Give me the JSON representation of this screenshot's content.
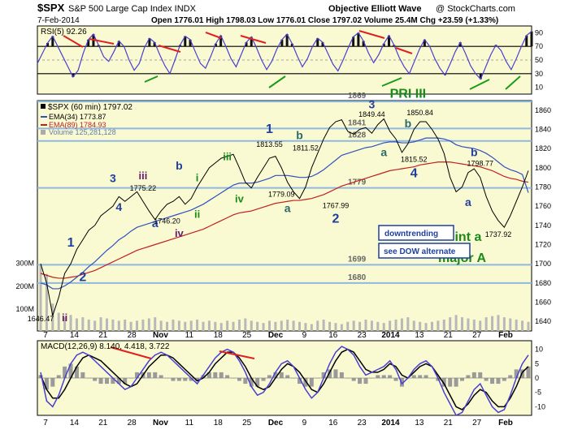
{
  "header": {
    "ticker": "$SPX",
    "name": "S&P 500 Large Cap Index INDX",
    "date": "7-Feb-2014",
    "source": "Objective Elliott Wave",
    "credit": "@ StockCharts.com",
    "ohlc": "Open 1776.01  High 1798.03  Low 1776.01  Close 1797.02  Volume 25.4M  Chg +23.59 (+1.33%)"
  },
  "colors": {
    "panel_bg": "#fafad2",
    "rsi": "#4a3fd0",
    "price": "#000000",
    "ema34": "#3050c0",
    "ema89": "#c02020",
    "hline": "#8fb8e0",
    "label": "#1f3f9f",
    "green": "#1a8a1a",
    "purple": "#6a1a6a",
    "teal": "#2a6a6a",
    "trend": "#e02020"
  },
  "rsi_panel": {
    "label": "RSI(5) 92.26",
    "ticks": [
      "90",
      "70",
      "50",
      "30",
      "10"
    ],
    "ylim": [
      0,
      100
    ],
    "series": [
      45,
      60,
      75,
      85,
      70,
      55,
      40,
      25,
      35,
      60,
      80,
      88,
      72,
      55,
      48,
      62,
      78,
      70,
      50,
      35,
      45,
      68,
      82,
      76,
      58,
      42,
      30,
      50,
      72,
      85,
      80,
      62,
      45,
      38,
      55,
      74,
      86,
      70,
      52,
      40,
      58,
      76,
      84,
      68,
      50,
      36,
      48,
      66,
      80,
      88,
      74,
      56,
      40,
      52,
      70,
      82,
      76,
      60,
      44,
      34,
      50,
      68,
      84,
      90,
      78,
      60,
      46,
      58,
      74,
      86,
      72,
      54,
      40,
      30,
      48,
      66,
      80,
      70,
      52,
      38,
      28,
      44,
      62,
      76,
      60,
      42,
      30,
      22,
      40,
      58,
      72,
      64,
      48,
      36,
      52,
      70,
      86,
      92
    ]
  },
  "price_panel": {
    "legend": [
      "$SPX (60 min) 1797.02",
      "EMA(34) 1773.87",
      "EMA(89) 1784.93",
      "Volume 125,281,128"
    ],
    "yticks": [
      "1860",
      "1840",
      "1820",
      "1800",
      "1780",
      "1760",
      "1740",
      "1720",
      "1700",
      "1680",
      "1660",
      "1640"
    ],
    "ylim": [
      1630,
      1870
    ],
    "vol_ticks": [
      "300M",
      "200M",
      "100M"
    ],
    "levels": [
      {
        "value": 1869,
        "label": "1869"
      },
      {
        "value": 1841,
        "label": "1841"
      },
      {
        "value": 1828,
        "label": "1828"
      },
      {
        "value": 1779,
        "label": "1779"
      },
      {
        "value": 1699,
        "label": "1699"
      },
      {
        "value": 1680,
        "label": "1680"
      }
    ],
    "price": [
      1700,
      1680,
      1646,
      1665,
      1690,
      1700,
      1715,
      1725,
      1735,
      1740,
      1750,
      1755,
      1760,
      1770,
      1765,
      1770,
      1775,
      1765,
      1755,
      1746,
      1755,
      1762,
      1765,
      1770,
      1762,
      1768,
      1780,
      1790,
      1800,
      1805,
      1810,
      1812,
      1814,
      1800,
      1785,
      1779,
      1790,
      1800,
      1810,
      1812,
      1800,
      1785,
      1775,
      1768,
      1780,
      1800,
      1815,
      1830,
      1842,
      1848,
      1850,
      1838,
      1835,
      1840,
      1842,
      1836,
      1845,
      1851,
      1838,
      1830,
      1816,
      1825,
      1840,
      1848,
      1848,
      1840,
      1830,
      1815,
      1790,
      1775,
      1780,
      1795,
      1799,
      1790,
      1770,
      1755,
      1745,
      1738,
      1750,
      1765,
      1780,
      1797
    ],
    "ema34": [
      1680,
      1678,
      1674,
      1674,
      1677,
      1681,
      1686,
      1691,
      1697,
      1702,
      1708,
      1714,
      1719,
      1725,
      1729,
      1734,
      1738,
      1740,
      1742,
      1744,
      1746,
      1748,
      1750,
      1752,
      1754,
      1756,
      1759,
      1762,
      1766,
      1770,
      1774,
      1778,
      1782,
      1784,
      1784,
      1784,
      1785,
      1787,
      1789,
      1792,
      1792,
      1792,
      1791,
      1790,
      1790,
      1791,
      1794,
      1798,
      1803,
      1808,
      1813,
      1815,
      1817,
      1819,
      1821,
      1822,
      1824,
      1826,
      1827,
      1827,
      1826,
      1826,
      1827,
      1829,
      1831,
      1831,
      1831,
      1830,
      1828,
      1824,
      1822,
      1821,
      1820,
      1818,
      1815,
      1811,
      1806,
      1801,
      1798,
      1796,
      1793,
      1774
    ],
    "ema89": [
      1690,
      1688,
      1686,
      1685,
      1685,
      1686,
      1687,
      1689,
      1691,
      1693,
      1696,
      1699,
      1702,
      1705,
      1708,
      1711,
      1714,
      1716,
      1718,
      1720,
      1722,
      1724,
      1726,
      1728,
      1730,
      1732,
      1734,
      1736,
      1739,
      1742,
      1745,
      1748,
      1751,
      1753,
      1754,
      1755,
      1757,
      1759,
      1761,
      1763,
      1764,
      1765,
      1766,
      1766,
      1767,
      1768,
      1770,
      1772,
      1775,
      1778,
      1781,
      1783,
      1785,
      1787,
      1789,
      1791,
      1793,
      1795,
      1797,
      1798,
      1799,
      1800,
      1801,
      1803,
      1804,
      1805,
      1806,
      1806,
      1806,
      1805,
      1804,
      1803,
      1802,
      1801,
      1799,
      1797,
      1794,
      1791,
      1789,
      1788,
      1786,
      1785
    ],
    "volume": [
      290,
      250,
      120,
      80,
      60,
      70,
      55,
      60,
      50,
      45,
      60,
      55,
      50,
      45,
      50,
      40,
      45,
      50,
      55,
      60,
      45,
      40,
      50,
      45,
      40,
      45,
      50,
      40,
      45,
      40,
      35,
      45,
      40,
      50,
      55,
      45,
      40,
      35,
      45,
      40,
      45,
      50,
      45,
      40,
      35,
      30,
      45,
      50,
      40,
      35,
      30,
      40,
      45,
      40,
      50,
      45,
      40,
      35,
      45,
      50,
      55,
      60,
      45,
      40,
      35,
      40,
      45,
      50,
      60,
      70,
      60,
      55,
      50,
      45,
      60,
      65,
      70,
      60,
      55,
      50,
      45,
      40
    ],
    "wave_labels": [
      {
        "text": "1",
        "x": 5,
        "y": 1718,
        "color": "label",
        "size": 16
      },
      {
        "text": "2",
        "x": 7,
        "y": 1682,
        "color": "label",
        "size": 16
      },
      {
        "text": "3",
        "x": 12,
        "y": 1785,
        "color": "label",
        "size": 14
      },
      {
        "text": "4",
        "x": 13,
        "y": 1755,
        "color": "label",
        "size": 14
      },
      {
        "text": "iii",
        "x": 17,
        "y": 1788,
        "color": "purple",
        "size": 13
      },
      {
        "text": "1775.22",
        "x": 17,
        "y": 1776,
        "color": "price",
        "size": 9
      },
      {
        "text": "a",
        "x": 19,
        "y": 1738,
        "color": "label",
        "size": 14
      },
      {
        "text": "b",
        "x": 23,
        "y": 1798,
        "color": "label",
        "size": 14
      },
      {
        "text": "i",
        "x": 26,
        "y": 1786,
        "color": "green",
        "size": 13
      },
      {
        "text": "1746.20",
        "x": 21,
        "y": 1742,
        "color": "price",
        "size": 9
      },
      {
        "text": "iv",
        "x": 23,
        "y": 1728,
        "color": "purple",
        "size": 13
      },
      {
        "text": "ii",
        "x": 26,
        "y": 1748,
        "color": "green",
        "size": 13
      },
      {
        "text": "iii",
        "x": 31,
        "y": 1808,
        "color": "green",
        "size": 13
      },
      {
        "text": "iv",
        "x": 33,
        "y": 1764,
        "color": "green",
        "size": 13
      },
      {
        "text": "1",
        "x": 38,
        "y": 1836,
        "color": "label",
        "size": 16
      },
      {
        "text": "1813.55",
        "x": 38,
        "y": 1822,
        "color": "price",
        "size": 9
      },
      {
        "text": "b",
        "x": 43,
        "y": 1830,
        "color": "teal",
        "size": 14
      },
      {
        "text": "1811.52",
        "x": 44,
        "y": 1818,
        "color": "price",
        "size": 9
      },
      {
        "text": "1779.09",
        "x": 40,
        "y": 1770,
        "color": "price",
        "size": 9
      },
      {
        "text": "a",
        "x": 41,
        "y": 1754,
        "color": "teal",
        "size": 14
      },
      {
        "text": "1767.99",
        "x": 49,
        "y": 1758,
        "color": "price",
        "size": 9
      },
      {
        "text": "2",
        "x": 49,
        "y": 1743,
        "color": "label",
        "size": 16
      },
      {
        "text": "3",
        "x": 55,
        "y": 1862,
        "color": "label",
        "size": 14
      },
      {
        "text": "1849.44",
        "x": 55,
        "y": 1853,
        "color": "price",
        "size": 9
      },
      {
        "text": "a",
        "x": 57,
        "y": 1812,
        "color": "teal",
        "size": 14
      },
      {
        "text": "1850.84",
        "x": 63,
        "y": 1855,
        "color": "price",
        "size": 9
      },
      {
        "text": "b",
        "x": 61,
        "y": 1842,
        "color": "teal",
        "size": 14
      },
      {
        "text": "1815.52",
        "x": 62,
        "y": 1806,
        "color": "price",
        "size": 9
      },
      {
        "text": "4",
        "x": 62,
        "y": 1790,
        "color": "label",
        "size": 16
      },
      {
        "text": "b",
        "x": 72,
        "y": 1812,
        "color": "label",
        "size": 14
      },
      {
        "text": "1798.77",
        "x": 73,
        "y": 1802,
        "color": "price",
        "size": 9
      },
      {
        "text": "a",
        "x": 71,
        "y": 1760,
        "color": "label",
        "size": 14
      },
      {
        "text": "1737.92",
        "x": 76,
        "y": 1728,
        "color": "price",
        "size": 9
      }
    ],
    "notes": [
      {
        "text": "PRI III",
        "x": 61,
        "y": 1873,
        "color": "green",
        "size": 16
      },
      {
        "text": "int a",
        "x": 71,
        "y": 1724,
        "color": "green",
        "size": 16
      },
      {
        "text": "major A",
        "x": 70,
        "y": 1702,
        "color": "green",
        "size": 16
      },
      {
        "text": "1646.47",
        "x": 0,
        "y": 1640,
        "color": "price",
        "size": 9
      },
      {
        "text": "ii",
        "x": 4,
        "y": 1640,
        "color": "purple",
        "size": 13
      }
    ],
    "boxes": [
      "downtrending",
      "see DOW alternate"
    ]
  },
  "macd_panel": {
    "label": "MACD(12,26,9) 8.140, 4.418, 3.722",
    "ticks": [
      "10",
      "5",
      "0",
      "-5",
      "-10"
    ],
    "ylim": [
      -13,
      13
    ],
    "macd": [
      2,
      -8,
      -10,
      -6,
      0,
      5,
      8,
      9,
      8,
      6,
      4,
      2,
      0,
      -2,
      -4,
      -3,
      0,
      3,
      6,
      8,
      9,
      8,
      6,
      4,
      2,
      0,
      -2,
      1,
      4,
      7,
      9,
      10,
      9,
      6,
      2,
      -3,
      -6,
      -5,
      -2,
      2,
      5,
      6,
      4,
      0,
      -4,
      -7,
      -5,
      0,
      5,
      9,
      11,
      10,
      8,
      4,
      1,
      2,
      3,
      4,
      6,
      3,
      -2,
      0,
      3,
      5,
      6,
      4,
      0,
      -5,
      -9,
      -13,
      -12,
      -8,
      -4,
      -2,
      -6,
      -10,
      -12,
      -11,
      -6,
      0,
      5,
      8
    ],
    "signal": [
      1,
      -4,
      -7,
      -7,
      -4,
      0,
      4,
      7,
      8,
      7,
      6,
      4,
      2,
      0,
      -2,
      -3,
      -2,
      1,
      4,
      6,
      8,
      8,
      7,
      5,
      3,
      1,
      -1,
      0,
      2,
      5,
      7,
      9,
      9,
      7,
      4,
      0,
      -3,
      -4,
      -3,
      0,
      3,
      5,
      4,
      2,
      -1,
      -4,
      -5,
      -2,
      2,
      6,
      9,
      10,
      9,
      6,
      3,
      2,
      2,
      3,
      5,
      4,
      1,
      0,
      2,
      4,
      5,
      4,
      1,
      -2,
      -6,
      -10,
      -11,
      -9,
      -6,
      -4,
      -5,
      -8,
      -10,
      -10,
      -7,
      -3,
      2,
      4
    ]
  },
  "x_axis": {
    "labels": [
      "7",
      "14",
      "21",
      "28",
      "Nov",
      "11",
      "18",
      "25",
      "Dec",
      "9",
      "16",
      "23",
      "2014",
      "13",
      "21",
      "27",
      "Feb"
    ]
  }
}
